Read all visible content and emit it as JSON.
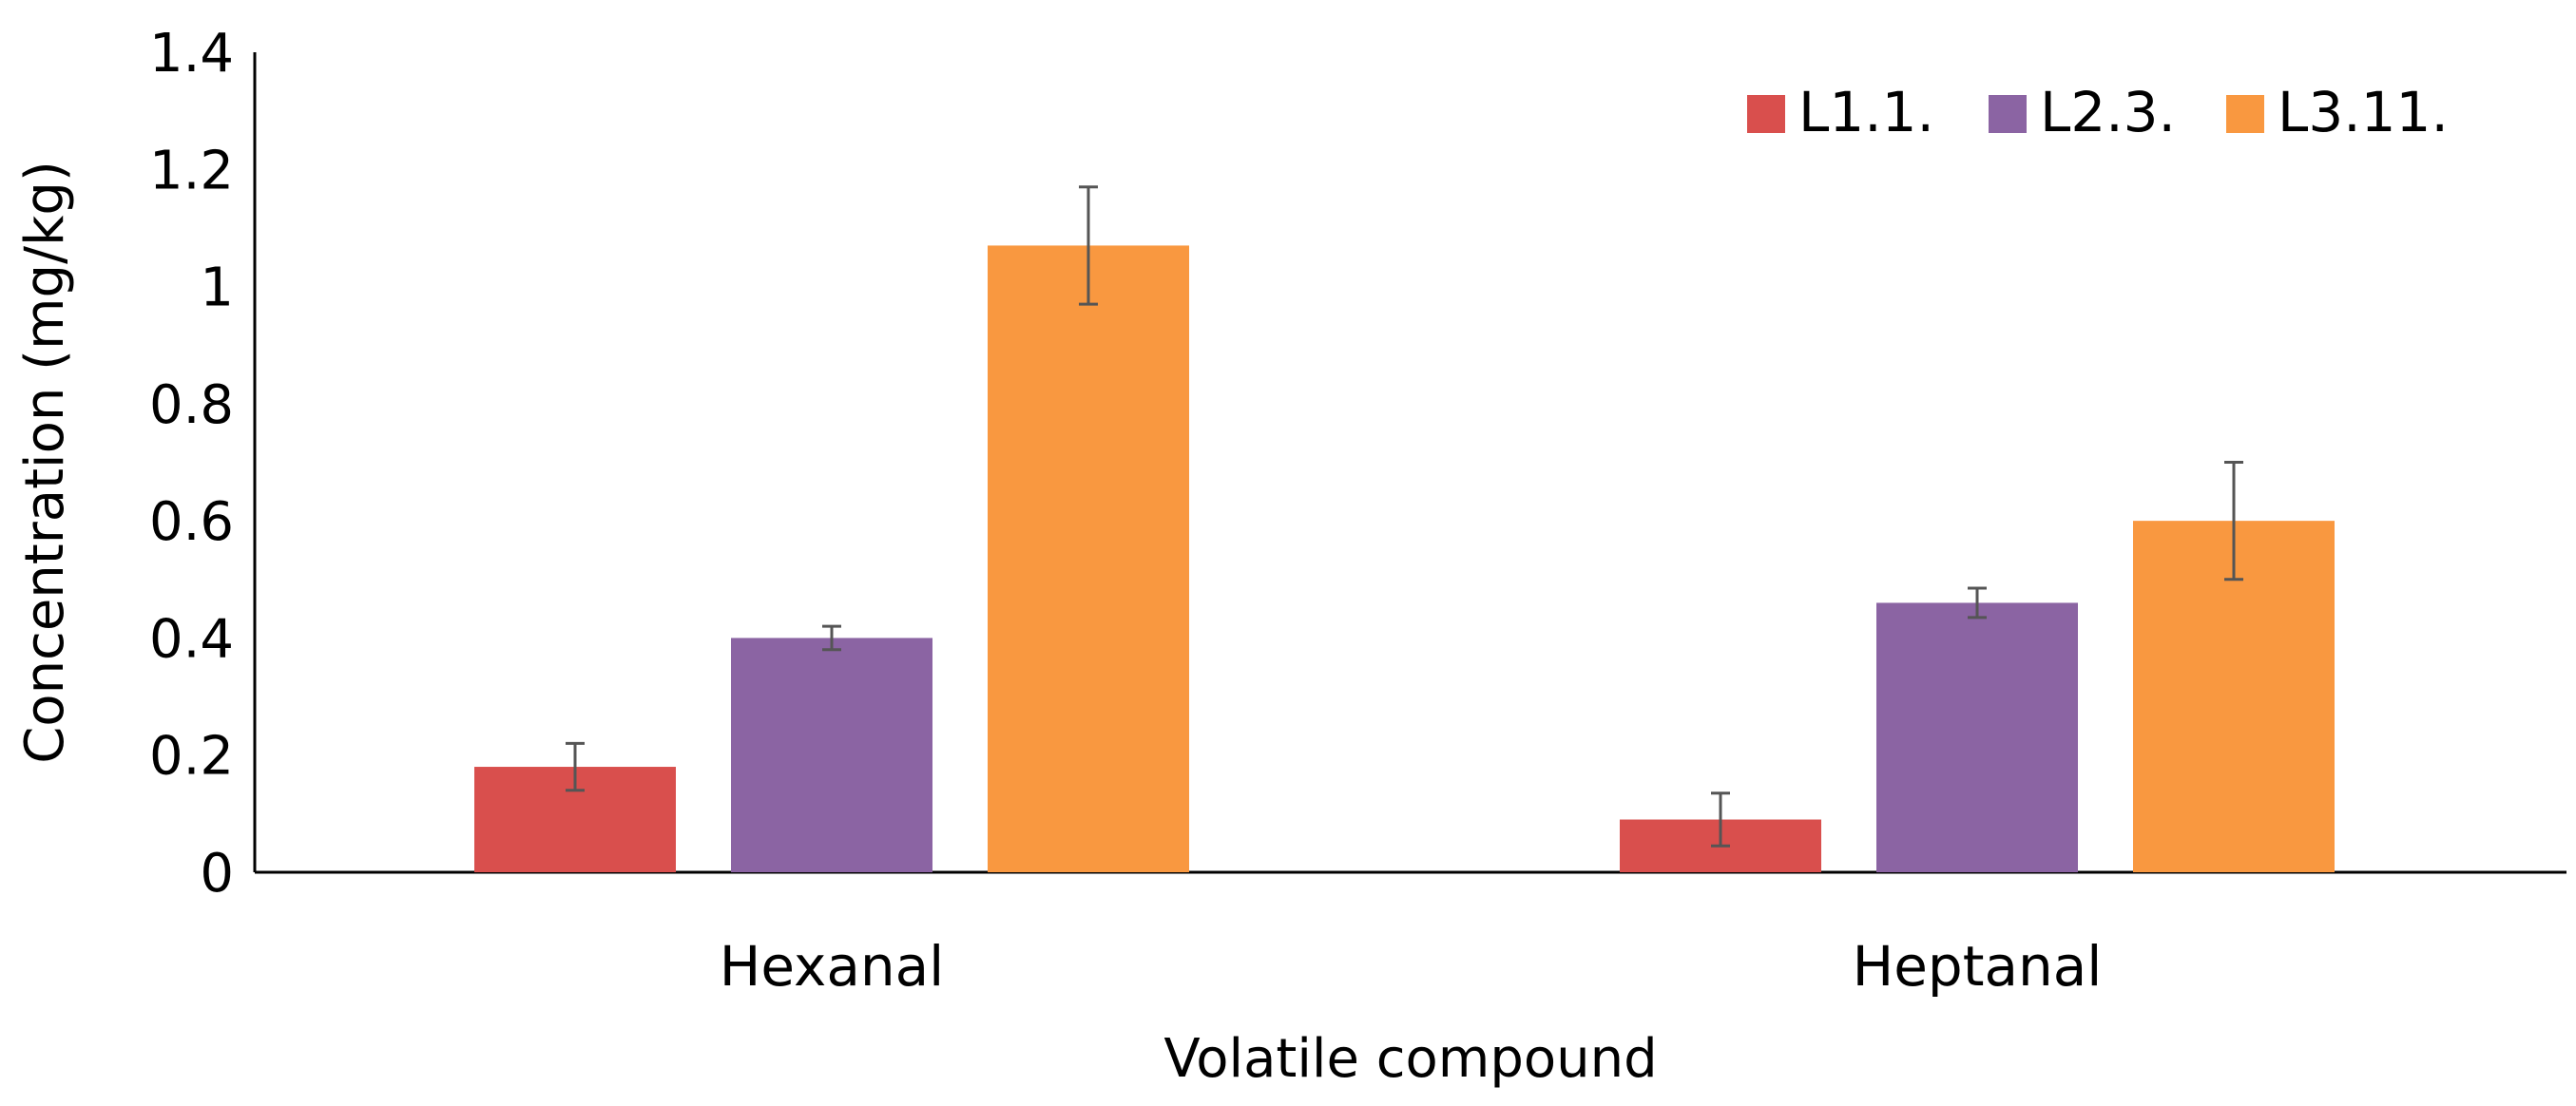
{
  "chart_data": {
    "type": "bar",
    "categories": [
      "Hexanal",
      "Heptanal"
    ],
    "series": [
      {
        "name": "L1.1.",
        "color": "#d94f4d",
        "values": [
          0.18,
          0.09
        ],
        "errors": [
          0.04,
          0.045
        ]
      },
      {
        "name": "L2.3.",
        "color": "#8b64a3",
        "values": [
          0.4,
          0.46
        ],
        "errors": [
          0.02,
          0.025
        ]
      },
      {
        "name": "L3.11.",
        "color": "#f99840",
        "values": [
          1.07,
          0.6
        ],
        "errors": [
          0.1,
          0.1
        ]
      }
    ],
    "xlabel": "Volatile compound",
    "ylabel": "Concentration (mg/kg)",
    "ylim": [
      0,
      1.4
    ],
    "yticks": [
      0,
      0.2,
      0.4,
      0.6,
      0.8,
      1,
      1.2,
      1.4
    ],
    "ytick_labels": [
      "0",
      "0.2",
      "0.4",
      "0.6",
      "0.8",
      "1",
      "1.2",
      "1.4"
    ],
    "grid": false,
    "legend": "top-right"
  }
}
